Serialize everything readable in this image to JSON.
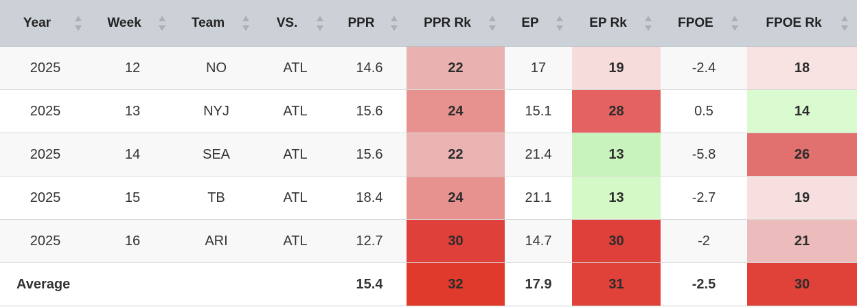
{
  "colors": {
    "header_bg": "#ccd1d7",
    "row_odd_bg": "#f8f8f8",
    "row_even_bg": "#ffffff"
  },
  "headers": {
    "year": "Year",
    "week": "Week",
    "team": "Team",
    "vs": "VS.",
    "ppr": "PPR",
    "ppr_rk": "PPR Rk",
    "ep": "EP",
    "ep_rk": "EP Rk",
    "fpoe": "FPOE",
    "fpoe_rk": "FPOE Rk"
  },
  "sort_icon": "sort-arrows-icon",
  "rows": [
    {
      "year": "2025",
      "week": "12",
      "team": "NO",
      "vs": "ATL",
      "ppr": "14.6",
      "ppr_rk": "22",
      "ep": "17",
      "ep_rk": "19",
      "fpoe": "-2.4",
      "fpoe_rk": "18",
      "ppr_rk_color": "#e9b1b0",
      "ep_rk_color": "#f6dcdb",
      "fpoe_rk_color": "#f8e3e2"
    },
    {
      "year": "2025",
      "week": "13",
      "team": "NYJ",
      "vs": "ATL",
      "ppr": "15.6",
      "ppr_rk": "24",
      "ep": "15.1",
      "ep_rk": "28",
      "fpoe": "0.5",
      "fpoe_rk": "14",
      "ppr_rk_color": "#e8928f",
      "ep_rk_color": "#e46260",
      "fpoe_rk_color": "#dafad0"
    },
    {
      "year": "2025",
      "week": "14",
      "team": "SEA",
      "vs": "ATL",
      "ppr": "15.6",
      "ppr_rk": "22",
      "ep": "21.4",
      "ep_rk": "13",
      "fpoe": "-5.8",
      "fpoe_rk": "26",
      "ppr_rk_color": "#e9b3b2",
      "ep_rk_color": "#c8f3bc",
      "fpoe_rk_color": "#e1716e"
    },
    {
      "year": "2025",
      "week": "15",
      "team": "TB",
      "vs": "ATL",
      "ppr": "18.4",
      "ppr_rk": "24",
      "ep": "21.1",
      "ep_rk": "13",
      "fpoe": "-2.7",
      "fpoe_rk": "19",
      "ppr_rk_color": "#e8928f",
      "ep_rk_color": "#d4f8c6",
      "fpoe_rk_color": "#f6dfde"
    },
    {
      "year": "2025",
      "week": "16",
      "team": "ARI",
      "vs": "ATL",
      "ppr": "12.7",
      "ppr_rk": "30",
      "ep": "14.7",
      "ep_rk": "30",
      "fpoe": "-2",
      "fpoe_rk": "21",
      "ppr_rk_color": "#df403a",
      "ep_rk_color": "#df403a",
      "fpoe_rk_color": "#ebbcbb"
    }
  ],
  "average": {
    "label": "Average",
    "ppr": "15.4",
    "ppr_rk": "32",
    "ep": "17.9",
    "ep_rk": "31",
    "fpoe": "-2.5",
    "fpoe_rk": "30",
    "ppr_rk_color": "#df3a2b",
    "ep_rk_color": "#e0423a",
    "fpoe_rk_color": "#e0423a"
  }
}
